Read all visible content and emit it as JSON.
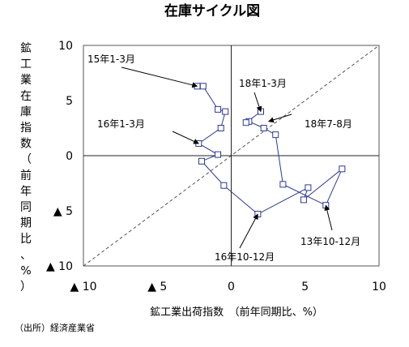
{
  "chart_data": {
    "type": "line",
    "title": "在庫サイクル図",
    "xlabel": "鉱工業出荷指数　（前年同期比、%）",
    "ylabel_chars": [
      "鉱",
      "工",
      "業",
      "在",
      "庫",
      "指",
      "数",
      "（",
      "前",
      "年",
      "同",
      "期",
      "比",
      "、",
      "%",
      "）"
    ],
    "xlim": [
      -10,
      10
    ],
    "ylim": [
      -10,
      10
    ],
    "x_ticks": [
      {
        "value": -10,
        "label": "▲ 10"
      },
      {
        "value": -5,
        "label": "▲ 5"
      },
      {
        "value": 0,
        "label": "0"
      },
      {
        "value": 5,
        "label": "5"
      },
      {
        "value": 10,
        "label": "10"
      }
    ],
    "y_ticks": [
      {
        "value": 10,
        "label": "10"
      },
      {
        "value": 5,
        "label": "5"
      },
      {
        "value": 0,
        "label": "0"
      },
      {
        "value": -5,
        "label": "▲ 5"
      },
      {
        "value": -10,
        "label": "▲ 10"
      }
    ],
    "reference_line": {
      "style": "dashed",
      "from": [
        -10,
        -10
      ],
      "to": [
        10,
        10
      ]
    },
    "series": [
      {
        "color": "#2e3a8c",
        "x": [
          -2.3,
          -1.9,
          -0.9,
          -0.4,
          -0.7,
          -2.2,
          -0.9,
          -2.0,
          -0.5,
          1.8,
          5.2,
          4.9,
          7.5,
          6.4,
          3.5,
          3.0,
          2.2,
          1.2,
          1.0,
          2.0
        ],
        "y": [
          6.3,
          6.3,
          4.2,
          4.0,
          2.5,
          1.1,
          0.1,
          -0.5,
          -2.7,
          -5.3,
          -2.9,
          -4.0,
          -1.2,
          -4.5,
          -2.6,
          1.9,
          2.5,
          3.1,
          3.0,
          4.0
        ]
      }
    ],
    "annotations": [
      {
        "text": "15年1-3月",
        "x": -2.3,
        "y": 6.3
      },
      {
        "text": "16年1-3月",
        "x": -2.2,
        "y": 1.1
      },
      {
        "text": "18年1-3月",
        "x": 2.0,
        "y": 4.0
      },
      {
        "text": "18年7-8月",
        "x": 2.2,
        "y": 3.4
      },
      {
        "text": "13年10-12月",
        "x": 6.4,
        "y": -4.5
      },
      {
        "text": "16年10-12月",
        "x": 1.8,
        "y": -5.3
      }
    ]
  },
  "source_note": "（出所）経済産業省"
}
